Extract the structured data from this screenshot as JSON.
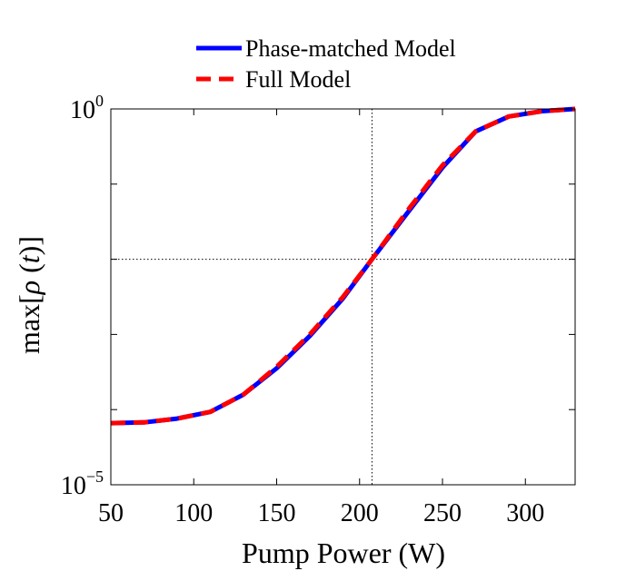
{
  "chart_data": {
    "type": "line",
    "title": "",
    "xlabel": "Pump Power (W)",
    "ylabel_func": "max",
    "ylabel_var": "ρ",
    "ylabel_arg": "t",
    "xlim": [
      50,
      330
    ],
    "ylim_log10": [
      -5,
      0
    ],
    "yscale": "log",
    "x_ticks": [
      50,
      100,
      150,
      200,
      250,
      300
    ],
    "x_tick_labels": [
      "50",
      "100",
      "150",
      "200",
      "250",
      "300"
    ],
    "y_ticks_log10": [
      -5,
      -4,
      -3,
      -2,
      -1,
      0
    ],
    "y_tick_labels": [
      {
        "base": "10",
        "exp": "−5",
        "log10": -5
      },
      {
        "base": "10",
        "exp": "0",
        "log10": 0
      }
    ],
    "grid": false,
    "reference_lines": {
      "x": 207.5,
      "y_log10": -2
    },
    "legend_position": "top-center",
    "series": [
      {
        "name": "Phase-matched Model",
        "color": "#0000ff",
        "style": "solid",
        "x": [
          50,
          70,
          90,
          110,
          130,
          150,
          170,
          190,
          207.5,
          230,
          250,
          270,
          290,
          310,
          330
        ],
        "log10_y": [
          -4.18,
          -4.17,
          -4.12,
          -4.03,
          -3.8,
          -3.45,
          -3.02,
          -2.52,
          -2.0,
          -1.35,
          -0.78,
          -0.3,
          -0.1,
          -0.03,
          0.0
        ]
      },
      {
        "name": "Full Model",
        "color": "#ff0000",
        "style": "dashed",
        "x": [
          50,
          70,
          90,
          110,
          130,
          150,
          170,
          190,
          207.5,
          230,
          250,
          270,
          290,
          310,
          330
        ],
        "log10_y": [
          -4.18,
          -4.17,
          -4.12,
          -4.03,
          -3.8,
          -3.43,
          -3.0,
          -2.5,
          -2.0,
          -1.32,
          -0.75,
          -0.3,
          -0.1,
          -0.03,
          0.0
        ]
      }
    ]
  }
}
